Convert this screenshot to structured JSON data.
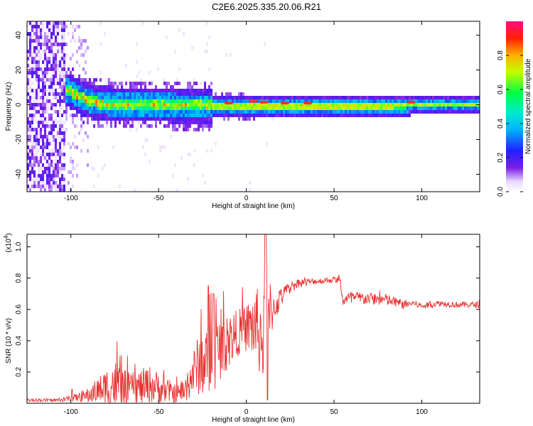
{
  "title": "C2E6.2025.335.20.06.R21",
  "chart_data": [
    {
      "type": "heatmap",
      "name": "spectrogram",
      "xlabel": "Height of straight line (km)",
      "ylabel": "Frequency (Hz)",
      "xlim": [
        -125,
        133
      ],
      "ylim": [
        -50,
        48
      ],
      "xticks": [
        -100,
        -50,
        0,
        50,
        100
      ],
      "yticks": [
        -40,
        -20,
        0,
        20,
        40
      ],
      "xtick_labels": [
        "-100",
        "-50",
        "0",
        "50",
        "100"
      ],
      "ytick_labels": [
        "-40",
        "-20",
        "0",
        "20",
        "40"
      ],
      "colorbar": {
        "label": "Normalized spectral amplitude",
        "range": [
          0,
          1
        ],
        "ticks": [
          0.0,
          0.2,
          0.4,
          0.6,
          0.8
        ],
        "tick_labels": [
          "0.0",
          "0.2",
          "0.4",
          "0.6",
          "0.8"
        ]
      },
      "ridge": {
        "description_points_x": [
          -101,
          -95,
          -85,
          -75,
          -65,
          -50,
          -35,
          -25,
          -15,
          0,
          25,
          50,
          75,
          95,
          133
        ],
        "center_hz": [
          9,
          5,
          2,
          1,
          1,
          1,
          0.5,
          0.5,
          0,
          0,
          0,
          0,
          0,
          1,
          1
        ]
      }
    },
    {
      "type": "line",
      "name": "snr",
      "xlabel": "Height of straight line (km)",
      "ylabel": "SNR (10 * v/v)",
      "scale_label": "(x10",
      "scale_exp": "4",
      "scale_close": ")",
      "xlim": [
        -125,
        133
      ],
      "ylim": [
        0,
        1.08
      ],
      "xticks": [
        -100,
        -50,
        0,
        50,
        100
      ],
      "yticks": [
        0.2,
        0.4,
        0.6,
        0.8,
        1.0
      ],
      "xtick_labels": [
        "-100",
        "-50",
        "0",
        "50",
        "100"
      ],
      "ytick_labels": [
        "0.2",
        "0.4",
        "0.6",
        "0.8",
        "1.0"
      ],
      "color": "#e83030",
      "envelope": {
        "x": [
          -125,
          -105,
          -100,
          -95,
          -90,
          -85,
          -80,
          -76,
          -72,
          -68,
          -64,
          -60,
          -55,
          -50,
          -45,
          -40,
          -35,
          -30,
          -27,
          -22,
          -19,
          -15,
          -10,
          -5,
          0,
          5,
          10,
          12,
          15,
          20,
          25,
          30,
          40,
          50,
          53,
          55,
          60,
          70,
          80,
          90,
          95,
          100,
          110,
          120,
          133
        ],
        "base": [
          0.02,
          0.02,
          0.03,
          0.04,
          0.05,
          0.08,
          0.1,
          0.12,
          0.1,
          0.08,
          0.1,
          0.1,
          0.12,
          0.1,
          0.08,
          0.06,
          0.08,
          0.2,
          0.25,
          0.28,
          0.3,
          0.35,
          0.4,
          0.45,
          0.48,
          0.5,
          0.4,
          0.5,
          0.6,
          0.68,
          0.74,
          0.77,
          0.78,
          0.79,
          0.79,
          0.66,
          0.67,
          0.67,
          0.66,
          0.63,
          0.64,
          0.62,
          0.64,
          0.63,
          0.63
        ],
        "amp": [
          0.01,
          0.01,
          0.02,
          0.03,
          0.05,
          0.08,
          0.12,
          0.18,
          0.15,
          0.12,
          0.1,
          0.12,
          0.12,
          0.1,
          0.08,
          0.06,
          0.08,
          0.15,
          0.2,
          0.25,
          0.25,
          0.2,
          0.18,
          0.15,
          0.15,
          0.25,
          0.3,
          0.4,
          0.12,
          0.06,
          0.04,
          0.03,
          0.02,
          0.02,
          0.02,
          0.04,
          0.05,
          0.04,
          0.04,
          0.03,
          0.02,
          0.02,
          0.02,
          0.02,
          0.02
        ]
      }
    }
  ]
}
